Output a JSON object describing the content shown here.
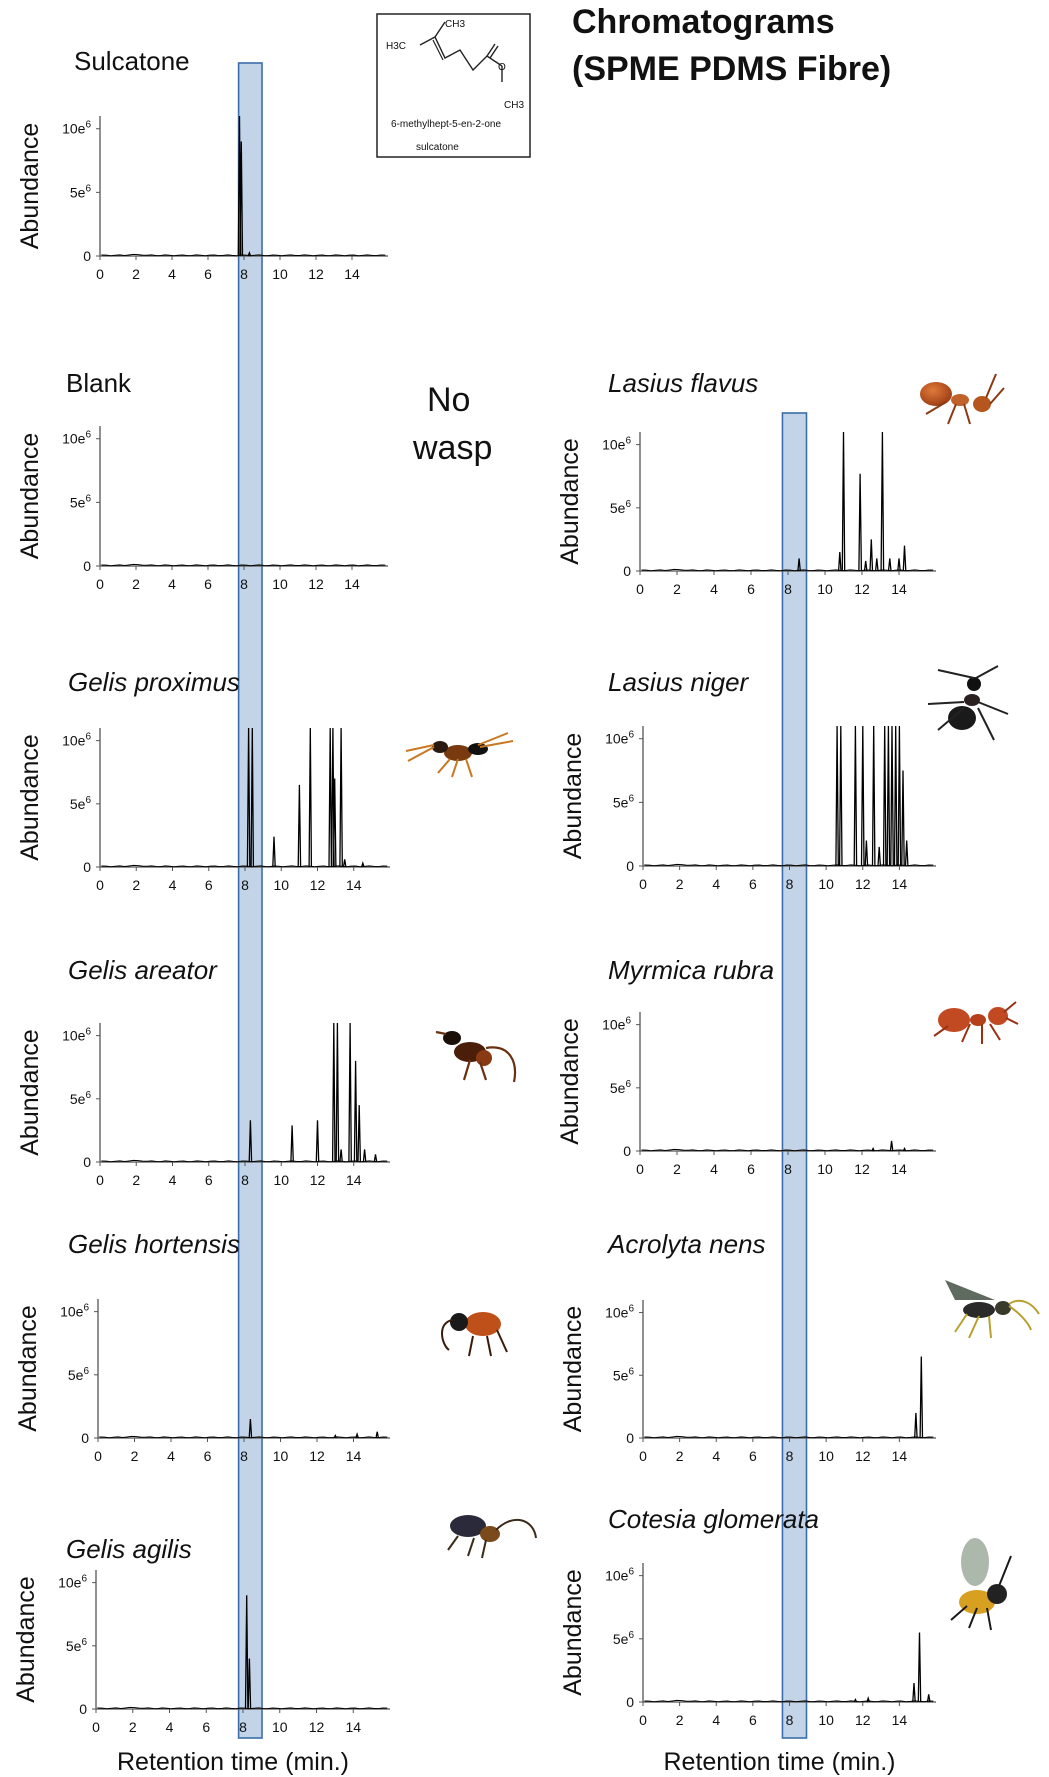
{
  "figure": {
    "title_line1": "Chromatograms",
    "title_line2": "(SPME PDMS Fibre)",
    "x_axis_label": "Retention time (min.)",
    "no_wasp_line1": "No",
    "no_wasp_line2": "wasp",
    "structure_name": "6-methylhept-5-en-2-one",
    "structure_common": "sulcatone",
    "structure_labels": [
      "CH3",
      "H3C",
      "O",
      "CH3"
    ],
    "highlight_band": {
      "from": 7.7,
      "to": 9.0,
      "color": "#b8cce4",
      "border": "#3b6ea8"
    },
    "colors": {
      "trace": "#000000",
      "axis": "#555555"
    },
    "insect_images": [
      "gelis-proximus",
      "gelis-areator",
      "gelis-hortensis",
      "gelis-agilis",
      "lasius-flavus",
      "lasius-niger",
      "myrmica-rubra",
      "acrolyta-nens",
      "cotesia-glomerata"
    ]
  },
  "chart_data": [
    {
      "type": "line",
      "title": "Sulcatone",
      "italic": false,
      "xlabel": "",
      "ylabel": "Abundance",
      "x_ticks": [
        0,
        2,
        4,
        6,
        8,
        10,
        12,
        14
      ],
      "y_ticks": [
        "0",
        "5e6",
        "10e6"
      ],
      "xlim": [
        0,
        16
      ],
      "ylim": [
        0,
        11
      ],
      "peaks": [
        [
          7.75,
          11.0
        ],
        [
          7.85,
          9.0
        ],
        [
          8.3,
          0.25
        ]
      ]
    },
    {
      "type": "line",
      "title": "Blank",
      "italic": false,
      "xlabel": "",
      "ylabel": "Abundance",
      "x_ticks": [
        0,
        2,
        4,
        6,
        8,
        10,
        12,
        14
      ],
      "y_ticks": [
        "0",
        "5e6",
        "10e6"
      ],
      "xlim": [
        0,
        16
      ],
      "ylim": [
        0,
        11
      ],
      "peaks": []
    },
    {
      "type": "line",
      "title": "Gelis proximus",
      "italic": true,
      "xlabel": "",
      "ylabel": "Abundance",
      "x_ticks": [
        0,
        2,
        4,
        6,
        8,
        10,
        12,
        14
      ],
      "y_ticks": [
        "0",
        "5e6",
        "10e6"
      ],
      "xlim": [
        0,
        16
      ],
      "ylim": [
        0,
        11
      ],
      "peaks": [
        [
          8.2,
          11
        ],
        [
          8.4,
          11
        ],
        [
          9.6,
          2.4
        ],
        [
          11.0,
          6.5
        ],
        [
          11.6,
          11
        ],
        [
          12.7,
          11
        ],
        [
          12.85,
          11
        ],
        [
          12.95,
          7
        ],
        [
          13.3,
          11
        ],
        [
          13.5,
          0.6
        ],
        [
          14.5,
          0.3
        ]
      ]
    },
    {
      "type": "line",
      "title": "Gelis areator",
      "italic": true,
      "xlabel": "",
      "ylabel": "Abundance",
      "x_ticks": [
        0,
        2,
        4,
        6,
        8,
        10,
        12,
        14
      ],
      "y_ticks": [
        "0",
        "5e6",
        "10e6"
      ],
      "xlim": [
        0,
        16
      ],
      "ylim": [
        0,
        11
      ],
      "peaks": [
        [
          8.3,
          3.3
        ],
        [
          10.6,
          2.9
        ],
        [
          12.0,
          3.3
        ],
        [
          12.9,
          11
        ],
        [
          13.1,
          11
        ],
        [
          13.3,
          1.0
        ],
        [
          13.8,
          11
        ],
        [
          14.1,
          8.0
        ],
        [
          14.3,
          4.5
        ],
        [
          14.6,
          1.0
        ],
        [
          15.2,
          0.6
        ]
      ]
    },
    {
      "type": "line",
      "title": "Gelis hortensis",
      "italic": true,
      "xlabel": "",
      "ylabel": "Abundance",
      "x_ticks": [
        0,
        2,
        4,
        6,
        8,
        10,
        12,
        14
      ],
      "y_ticks": [
        "0",
        "5e6",
        "10e6"
      ],
      "xlim": [
        0,
        16
      ],
      "ylim": [
        0,
        11
      ],
      "peaks": [
        [
          8.35,
          1.5
        ],
        [
          13.0,
          0.2
        ],
        [
          14.2,
          0.3
        ],
        [
          15.3,
          0.5
        ]
      ]
    },
    {
      "type": "line",
      "title": "Gelis agilis",
      "italic": true,
      "xlabel": "Retention time (min.)",
      "ylabel": "Abundance",
      "x_ticks": [
        0,
        2,
        4,
        6,
        8,
        10,
        12,
        14
      ],
      "y_ticks": [
        "0",
        "5e6",
        "10e6"
      ],
      "xlim": [
        0,
        16
      ],
      "ylim": [
        0,
        11
      ],
      "peaks": [
        [
          8.2,
          9.0
        ],
        [
          8.35,
          4.0
        ]
      ]
    },
    {
      "type": "line",
      "title": "Lasius flavus",
      "italic": true,
      "xlabel": "",
      "ylabel": "Abundance",
      "x_ticks": [
        0,
        2,
        4,
        6,
        8,
        10,
        12,
        14
      ],
      "y_ticks": [
        "0",
        "5e6",
        "10e6"
      ],
      "xlim": [
        0,
        16
      ],
      "ylim": [
        0,
        11
      ],
      "peaks": [
        [
          8.6,
          1.0
        ],
        [
          10.8,
          1.5
        ],
        [
          11.0,
          11
        ],
        [
          11.9,
          7.7
        ],
        [
          12.2,
          0.8
        ],
        [
          12.5,
          2.5
        ],
        [
          12.8,
          1.0
        ],
        [
          13.1,
          11
        ],
        [
          13.5,
          1.0
        ],
        [
          14.0,
          1.0
        ],
        [
          14.3,
          2.0
        ]
      ]
    },
    {
      "type": "line",
      "title": "Lasius niger",
      "italic": true,
      "xlabel": "",
      "ylabel": "Abundance",
      "x_ticks": [
        0,
        2,
        4,
        6,
        8,
        10,
        12,
        14
      ],
      "y_ticks": [
        "0",
        "5e6",
        "10e6"
      ],
      "xlim": [
        0,
        16
      ],
      "ylim": [
        0,
        11
      ],
      "peaks": [
        [
          10.6,
          11
        ],
        [
          10.8,
          11
        ],
        [
          11.6,
          11
        ],
        [
          12.0,
          11
        ],
        [
          12.2,
          2.0
        ],
        [
          12.6,
          11
        ],
        [
          12.9,
          1.5
        ],
        [
          13.2,
          11
        ],
        [
          13.4,
          11
        ],
        [
          13.6,
          11
        ],
        [
          13.8,
          11
        ],
        [
          14.0,
          11
        ],
        [
          14.2,
          7.5
        ],
        [
          14.4,
          2.0
        ]
      ]
    },
    {
      "type": "line",
      "title": "Myrmica rubra",
      "italic": true,
      "xlabel": "",
      "ylabel": "Abundance",
      "x_ticks": [
        0,
        2,
        4,
        6,
        8,
        10,
        12,
        14
      ],
      "y_ticks": [
        "0",
        "5e6",
        "10e6"
      ],
      "xlim": [
        0,
        16
      ],
      "ylim": [
        0,
        11
      ],
      "peaks": [
        [
          12.6,
          0.2
        ],
        [
          13.6,
          0.8
        ],
        [
          14.3,
          0.2
        ]
      ]
    },
    {
      "type": "line",
      "title": "Acrolyta nens",
      "italic": true,
      "xlabel": "",
      "ylabel": "Abundance",
      "x_ticks": [
        0,
        2,
        4,
        6,
        8,
        10,
        12,
        14
      ],
      "y_ticks": [
        "0",
        "5e6",
        "10e6"
      ],
      "xlim": [
        0,
        16
      ],
      "ylim": [
        0,
        11
      ],
      "peaks": [
        [
          14.9,
          2.0
        ],
        [
          15.2,
          6.5
        ]
      ]
    },
    {
      "type": "line",
      "title": "Cotesia glomerata",
      "italic": true,
      "xlabel": "Retention time (min.)",
      "ylabel": "Abundance",
      "x_ticks": [
        0,
        2,
        4,
        6,
        8,
        10,
        12,
        14
      ],
      "y_ticks": [
        "0",
        "5e6",
        "10e6"
      ],
      "xlim": [
        0,
        16
      ],
      "ylim": [
        0,
        11
      ],
      "peaks": [
        [
          11.6,
          0.2
        ],
        [
          12.3,
          0.3
        ],
        [
          14.8,
          1.5
        ],
        [
          15.1,
          5.5
        ],
        [
          15.6,
          0.6
        ]
      ]
    }
  ]
}
